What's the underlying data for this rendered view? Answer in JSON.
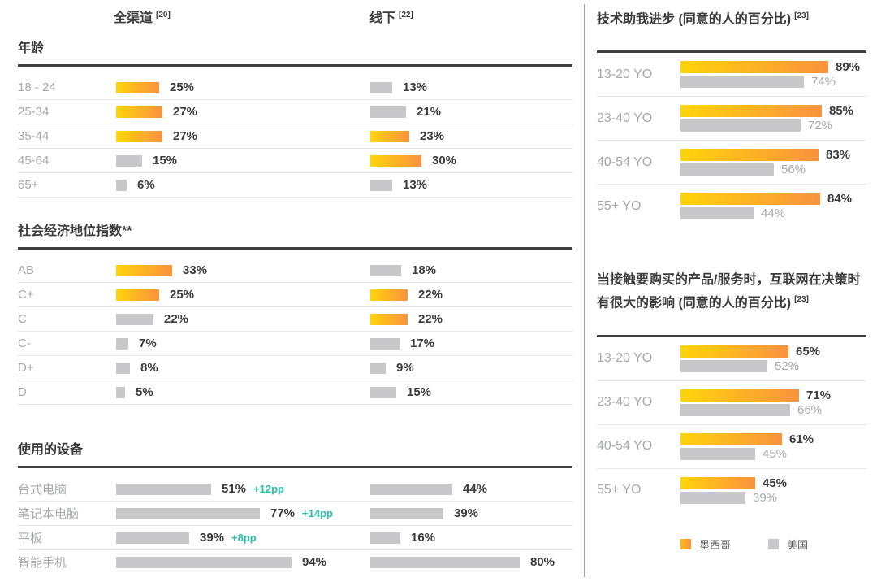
{
  "colors": {
    "bar_gradient_start": "#FFD40A",
    "bar_gradient_end": "#FA923E",
    "bar_gray": "#C8C8CA",
    "label_gray": "#A6A8AB",
    "value_dark": "#3B3B3D",
    "delta_teal": "#2BBFA5",
    "divider_dark": "#3F4042"
  },
  "left_table": {
    "column_headers": [
      {
        "label": "全渠道",
        "superscript": "[20]"
      },
      {
        "label": "线下",
        "superscript": "[22]"
      }
    ],
    "sections": [
      {
        "title": "年龄",
        "rows": [
          {
            "label": "18 - 24",
            "omni": {
              "value": 25,
              "label": "25%",
              "style": "orange"
            },
            "offline": {
              "value": 13,
              "label": "13%",
              "style": "gray"
            }
          },
          {
            "label": "25-34",
            "omni": {
              "value": 27,
              "label": "27%",
              "style": "orange"
            },
            "offline": {
              "value": 21,
              "label": "21%",
              "style": "gray"
            }
          },
          {
            "label": "35-44",
            "omni": {
              "value": 27,
              "label": "27%",
              "style": "orange"
            },
            "offline": {
              "value": 23,
              "label": "23%",
              "style": "orange"
            }
          },
          {
            "label": "45-64",
            "omni": {
              "value": 15,
              "label": "15%",
              "style": "gray"
            },
            "offline": {
              "value": 30,
              "label": "30%",
              "style": "orange"
            }
          },
          {
            "label": "65+",
            "omni": {
              "value": 6,
              "label": "6%",
              "style": "gray"
            },
            "offline": {
              "value": 13,
              "label": "13%",
              "style": "gray"
            }
          }
        ]
      },
      {
        "title": "社会经济地位指数**",
        "rows": [
          {
            "label": "AB",
            "omni": {
              "value": 33,
              "label": "33%",
              "style": "orange"
            },
            "offline": {
              "value": 18,
              "label": "18%",
              "style": "gray"
            }
          },
          {
            "label": "C+",
            "omni": {
              "value": 25,
              "label": "25%",
              "style": "orange"
            },
            "offline": {
              "value": 22,
              "label": "22%",
              "style": "orange"
            }
          },
          {
            "label": "C",
            "omni": {
              "value": 22,
              "label": "22%",
              "style": "gray"
            },
            "offline": {
              "value": 22,
              "label": "22%",
              "style": "orange"
            }
          },
          {
            "label": "C-",
            "omni": {
              "value": 7,
              "label": "7%",
              "style": "gray"
            },
            "offline": {
              "value": 17,
              "label": "17%",
              "style": "gray"
            }
          },
          {
            "label": "D+",
            "omni": {
              "value": 8,
              "label": "8%",
              "style": "gray"
            },
            "offline": {
              "value": 9,
              "label": "9%",
              "style": "gray"
            }
          },
          {
            "label": "D",
            "omni": {
              "value": 5,
              "label": "5%",
              "style": "gray"
            },
            "offline": {
              "value": 15,
              "label": "15%",
              "style": "gray"
            }
          }
        ]
      },
      {
        "title": "使用的设备",
        "rows": [
          {
            "label": "台式电脑",
            "omni": {
              "value": 51,
              "label": "51%",
              "style": "gray",
              "delta": "+12pp"
            },
            "offline": {
              "value": 44,
              "label": "44%",
              "style": "gray"
            }
          },
          {
            "label": "笔记本电脑",
            "omni": {
              "value": 77,
              "label": "77%",
              "style": "gray",
              "delta": "+14pp"
            },
            "offline": {
              "value": 39,
              "label": "39%",
              "style": "gray"
            }
          },
          {
            "label": "平板",
            "omni": {
              "value": 39,
              "label": "39%",
              "style": "gray",
              "delta": "+8pp"
            },
            "offline": {
              "value": 16,
              "label": "16%",
              "style": "gray"
            }
          },
          {
            "label": "智能手机",
            "omni": {
              "value": 94,
              "label": "94%",
              "style": "gray"
            },
            "offline": {
              "value": 80,
              "label": "80%",
              "style": "gray"
            }
          }
        ]
      }
    ]
  },
  "right_panel": {
    "charts": [
      {
        "title": "技术助我进步 (同意的人的百分比)",
        "superscript": "[23]",
        "rows": [
          {
            "label": "13-20 YO",
            "mexico": 89,
            "mexico_label": "89%",
            "usa": 74,
            "usa_label": "74%"
          },
          {
            "label": "23-40 YO",
            "mexico": 85,
            "mexico_label": "85%",
            "usa": 72,
            "usa_label": "72%"
          },
          {
            "label": "40-54 YO",
            "mexico": 83,
            "mexico_label": "83%",
            "usa": 56,
            "usa_label": "56%"
          },
          {
            "label": "55+ YO",
            "mexico": 84,
            "mexico_label": "84%",
            "usa": 44,
            "usa_label": "44%"
          }
        ]
      },
      {
        "title": "当接触要购买的产品/服务时，互联网在决策时有很大的影响 (同意的人的百分比)",
        "superscript": "[23]",
        "rows": [
          {
            "label": "13-20 YO",
            "mexico": 65,
            "mexico_label": "65%",
            "usa": 52,
            "usa_label": "52%"
          },
          {
            "label": "23-40 YO",
            "mexico": 71,
            "mexico_label": "71%",
            "usa": 66,
            "usa_label": "66%"
          },
          {
            "label": "40-54 YO",
            "mexico": 61,
            "mexico_label": "61%",
            "usa": 45,
            "usa_label": "45%"
          },
          {
            "label": "55+ YO",
            "mexico": 45,
            "mexico_label": "45%",
            "usa": 39,
            "usa_label": "39%"
          }
        ]
      }
    ],
    "legend": [
      {
        "label": "墨西哥",
        "swatch": "orange"
      },
      {
        "label": "美国",
        "swatch": "gray"
      }
    ]
  },
  "chart_data": [
    {
      "type": "bar",
      "title": "年龄",
      "categories": [
        "18 - 24",
        "25-34",
        "35-44",
        "45-64",
        "65+"
      ],
      "series": [
        {
          "name": "全渠道 [20]",
          "values": [
            25,
            27,
            27,
            15,
            6
          ]
        },
        {
          "name": "线下 [22]",
          "values": [
            13,
            21,
            23,
            30,
            13
          ]
        }
      ],
      "unit": "%",
      "orientation": "horizontal",
      "grid": false,
      "xlim": [
        0,
        100
      ]
    },
    {
      "type": "bar",
      "title": "社会经济地位指数**",
      "categories": [
        "AB",
        "C+",
        "C",
        "C-",
        "D+",
        "D"
      ],
      "series": [
        {
          "name": "全渠道 [20]",
          "values": [
            33,
            25,
            22,
            7,
            8,
            5
          ]
        },
        {
          "name": "线下 [22]",
          "values": [
            18,
            22,
            22,
            17,
            9,
            15
          ]
        }
      ],
      "unit": "%",
      "orientation": "horizontal",
      "grid": false,
      "xlim": [
        0,
        100
      ]
    },
    {
      "type": "bar",
      "title": "使用的设备",
      "categories": [
        "台式电脑",
        "笔记本电脑",
        "平板",
        "智能手机"
      ],
      "series": [
        {
          "name": "全渠道 [20]",
          "values": [
            51,
            77,
            39,
            94
          ],
          "deltas": [
            "+12pp",
            "+14pp",
            "+8pp",
            null
          ]
        },
        {
          "name": "线下 [22]",
          "values": [
            44,
            39,
            16,
            80
          ]
        }
      ],
      "unit": "%",
      "orientation": "horizontal",
      "grid": false,
      "xlim": [
        0,
        100
      ]
    },
    {
      "type": "bar",
      "title": "技术助我进步 (同意的人的百分比) [23]",
      "categories": [
        "13-20 YO",
        "23-40 YO",
        "40-54 YO",
        "55+ YO"
      ],
      "series": [
        {
          "name": "墨西哥",
          "values": [
            89,
            85,
            83,
            84
          ]
        },
        {
          "name": "美国",
          "values": [
            74,
            72,
            56,
            44
          ]
        }
      ],
      "unit": "%",
      "orientation": "horizontal",
      "grid": false,
      "legend_position": "bottom",
      "xlim": [
        0,
        100
      ]
    },
    {
      "type": "bar",
      "title": "当接触要购买的产品/服务时，互联网在决策时有很大的影响 (同意的人的百分比) [23]",
      "categories": [
        "13-20 YO",
        "23-40 YO",
        "40-54 YO",
        "55+ YO"
      ],
      "series": [
        {
          "name": "墨西哥",
          "values": [
            65,
            71,
            61,
            45
          ]
        },
        {
          "name": "美国",
          "values": [
            52,
            66,
            45,
            39
          ]
        }
      ],
      "unit": "%",
      "orientation": "horizontal",
      "grid": false,
      "legend_position": "bottom",
      "xlim": [
        0,
        100
      ]
    }
  ]
}
